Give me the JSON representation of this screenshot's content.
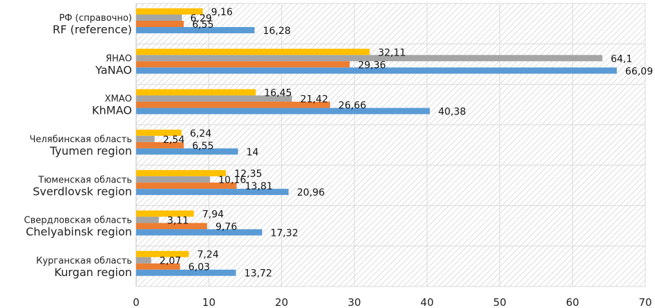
{
  "chart_data": {
    "type": "bar",
    "orientation": "horizontal",
    "title": "",
    "xlabel": "",
    "ylabel": "",
    "xlim": [
      0,
      70
    ],
    "xticks": [
      "0",
      "10",
      "20",
      "30",
      "40",
      "50",
      "60",
      "70"
    ],
    "grid": true,
    "legend": "none",
    "categories": [
      {
        "ru": "РФ (справочно)",
        "en": "RF (reference)"
      },
      {
        "ru": "ЯНАО",
        "en": "YaNAO"
      },
      {
        "ru": "ХМАО",
        "en": "KhMAO"
      },
      {
        "ru": "Челябинская область",
        "en": "Tyumen region"
      },
      {
        "ru": "Тюменская область",
        "en": "Sverdlovsk region"
      },
      {
        "ru": "Свердловская область",
        "en": "Chelyabinsk region"
      },
      {
        "ru": "Курганская область",
        "en": "Kurgan region"
      }
    ],
    "series": [
      {
        "name": "series-yellow",
        "color": "#FFC000",
        "values": [
          9.16,
          32.11,
          16.45,
          6.24,
          12.35,
          7.94,
          7.24
        ],
        "labels": [
          "9,16",
          "32,11",
          "16,45",
          "6,24",
          "12,35",
          "7,94",
          "7,24"
        ]
      },
      {
        "name": "series-gray",
        "color": "#A5A5A5",
        "values": [
          6.29,
          64.1,
          21.42,
          2.54,
          10.16,
          3.11,
          2.07
        ],
        "labels": [
          "6,29",
          "64,1",
          "21,42",
          "2,54",
          "10,16",
          "3,11",
          "2,07"
        ]
      },
      {
        "name": "series-orange",
        "color": "#ED7D31",
        "values": [
          6.55,
          29.36,
          26.66,
          6.55,
          13.81,
          9.76,
          6.03
        ],
        "labels": [
          "6,55",
          "29,36",
          "26,66",
          "6,55",
          "13,81",
          "9,76",
          "6,03"
        ]
      },
      {
        "name": "series-blue",
        "color": "#5B9BD5",
        "values": [
          16.28,
          66.09,
          40.38,
          14,
          20.96,
          17.32,
          13.72
        ],
        "labels": [
          "16,28",
          "66,09",
          "40,38",
          "14",
          "20,96",
          "17,32",
          "13,72"
        ]
      }
    ]
  }
}
